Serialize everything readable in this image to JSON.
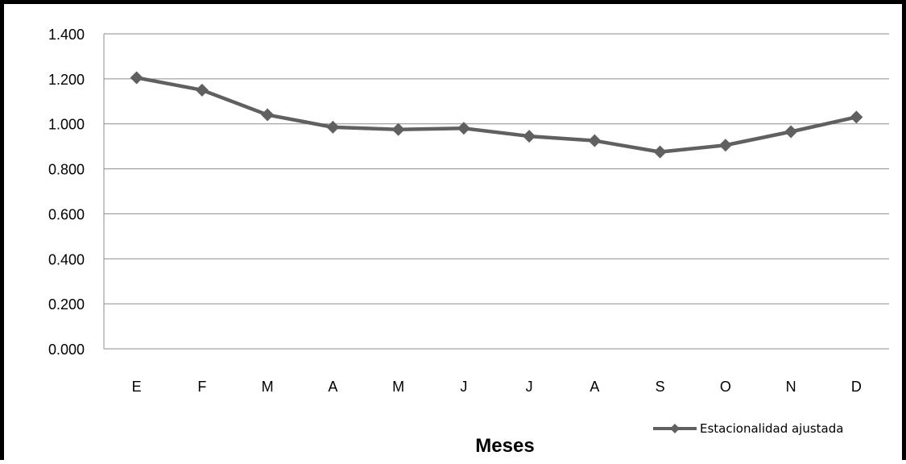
{
  "chart_data": {
    "type": "line",
    "title": "",
    "xlabel": "Meses",
    "ylabel": "",
    "categories": [
      "E",
      "F",
      "M",
      "A",
      "M",
      "J",
      "J",
      "A",
      "S",
      "O",
      "N",
      "D"
    ],
    "series": [
      {
        "name": "Estacionalidad ajustada",
        "values": [
          1.205,
          1.15,
          1.04,
          0.985,
          0.975,
          0.98,
          0.945,
          0.925,
          0.875,
          0.905,
          0.965,
          1.03
        ],
        "color": "#606060",
        "marker": "diamond"
      }
    ],
    "ylim": [
      0,
      1.4
    ],
    "yticks": [
      "0.000",
      "0.200",
      "0.400",
      "0.600",
      "0.800",
      "1.000",
      "1.200",
      "1.400"
    ],
    "grid": true,
    "legend_position": "bottom-right"
  }
}
